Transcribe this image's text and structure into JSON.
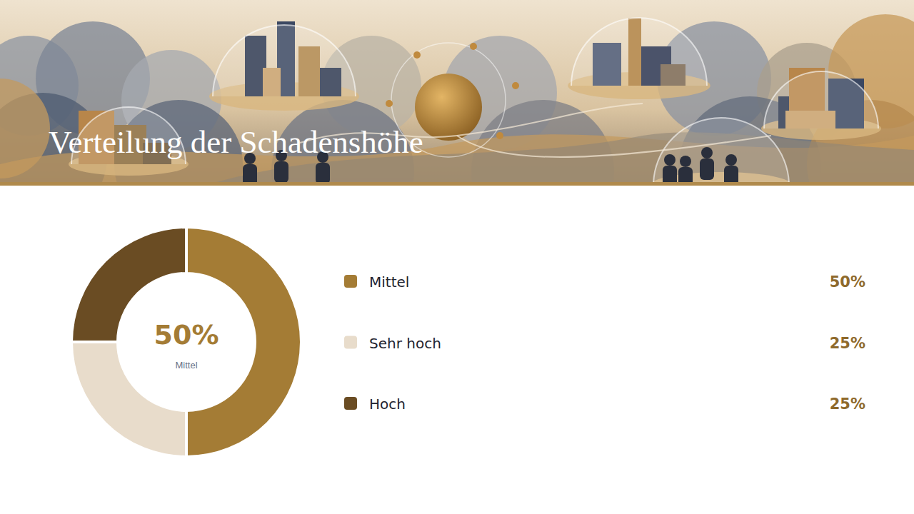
{
  "chart_data": {
    "type": "pie",
    "title": "Verteilung der Schadenshöhe",
    "categories": [
      "Mittel",
      "Sehr hoch",
      "Hoch"
    ],
    "values": [
      50,
      25,
      25
    ],
    "value_labels": [
      "50%",
      "25%",
      "25%"
    ],
    "colors": [
      "#a47c35",
      "#e8dccb",
      "#6a4c23"
    ],
    "data_labels": true,
    "legend": "right"
  }
}
